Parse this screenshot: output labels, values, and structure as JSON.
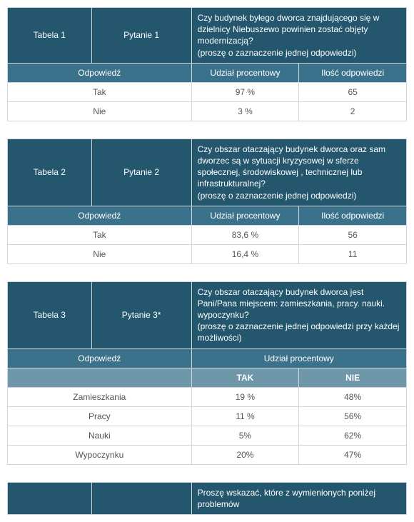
{
  "colors": {
    "header_bg": "#24566e",
    "subheader_bg": "#3b728b",
    "tn_bg": "#6e97a9",
    "border": "#cfd6db",
    "text": "#555555",
    "header_text": "#ffffff"
  },
  "tables": [
    {
      "label": "Tabela 1",
      "pytanie_label": "Pytanie 1",
      "question": "Czy budynek byłego dworca znajdującego się w dzielnicy Niebuszewo powinien zostać objęty modernizacją?\n(proszę o zaznaczenie jednej odpowiedzi)",
      "sub_headers": [
        "Odpowiedź",
        "Udział procentowy",
        "Ilość odpowiedzi"
      ],
      "rows": [
        {
          "ans": "Tak",
          "pct": "97 %",
          "count": "65"
        },
        {
          "ans": "Nie",
          "pct": "3 %",
          "count": "2"
        }
      ]
    },
    {
      "label": "Tabela 2",
      "pytanie_label": "Pytanie 2",
      "question": "Czy obszar otaczający budynek dworca oraz sam dworzec są w sytuacji kryzysowej w sferze społecznej, środowiskowej , technicznej lub infrastrukturalnej?\n (proszę o zaznaczenie jednej odpowiedzi)",
      "sub_headers": [
        "Odpowiedź",
        "Udział procentowy",
        "Ilość odpowiedzi"
      ],
      "rows": [
        {
          "ans": "Tak",
          "pct": "83,6 %",
          "count": "56"
        },
        {
          "ans": "Nie",
          "pct": "16,4 %",
          "count": "11"
        }
      ]
    },
    {
      "label": "Tabela 3",
      "pytanie_label": "Pytanie 3*",
      "question": "Czy obszar otaczający budynek dworca jest Pani/Pana miejscem: zamieszkania, pracy. nauki. wypoczynku?\n(proszę o zaznaczenie jednej odpowiedzi przy każdej możliwości)",
      "sub_headers": [
        "Odpowiedź",
        "Udział procentowy"
      ],
      "tn_headers": [
        "TAK",
        "NIE"
      ],
      "rows3": [
        {
          "ans": "Zamieszkania",
          "tak": "19 %",
          "nie": "48%"
        },
        {
          "ans": "Pracy",
          "tak": "11 %",
          "nie": "56%"
        },
        {
          "ans": "Nauki",
          "tak": "5%",
          "nie": "62%"
        },
        {
          "ans": "Wypoczynku",
          "tak": "20%",
          "nie": "47%"
        }
      ]
    }
  ],
  "partial_footer_question": "Proszę wskazać, które z wymienionych poniżej problemów"
}
